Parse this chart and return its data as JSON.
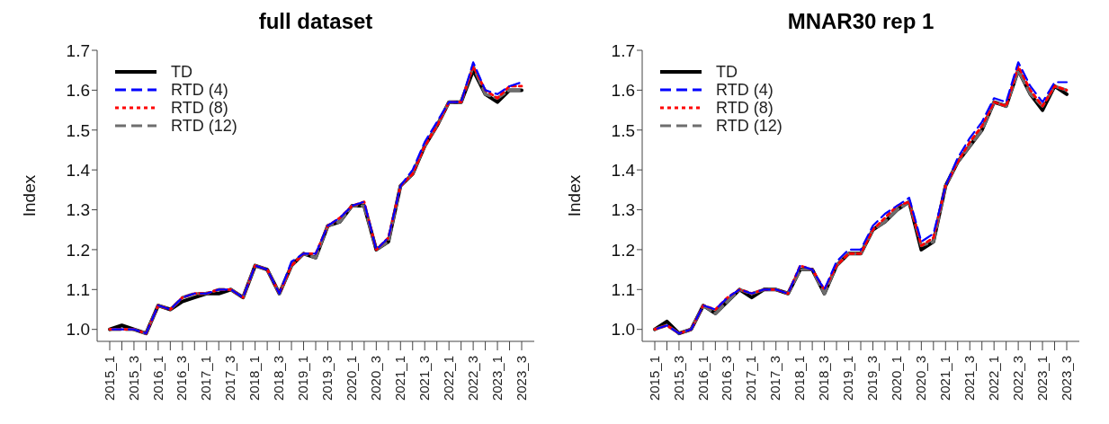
{
  "chart_data": [
    {
      "type": "line",
      "title": "full dataset",
      "ylabel": "Index",
      "categories": [
        "2015_1",
        null,
        "2015_3",
        null,
        "2016_1",
        null,
        "2016_3",
        null,
        "2017_1",
        null,
        "2017_3",
        null,
        "2018_1",
        null,
        "2018_3",
        null,
        "2019_1",
        null,
        "2019_3",
        null,
        "2020_1",
        null,
        "2020_3",
        null,
        "2021_1",
        null,
        "2021_3",
        null,
        "2022_1",
        null,
        "2022_3",
        null,
        "2023_1",
        null,
        "2023_3"
      ],
      "series": [
        {
          "name": "TD",
          "color": "#000000",
          "line_style": "solid",
          "values": [
            1.0,
            1.01,
            1.0,
            0.99,
            1.06,
            1.05,
            1.07,
            1.08,
            1.09,
            1.09,
            1.1,
            1.08,
            1.16,
            1.15,
            1.09,
            1.16,
            1.19,
            1.18,
            1.26,
            1.27,
            1.31,
            1.31,
            1.2,
            1.22,
            1.36,
            1.39,
            1.46,
            1.51,
            1.57,
            1.57,
            1.65,
            1.59,
            1.57,
            1.6,
            1.6
          ]
        },
        {
          "name": "RTD (4)",
          "color": "#0000ff",
          "line_style": "dashed",
          "values": [
            1.0,
            1.0,
            1.0,
            0.99,
            1.06,
            1.05,
            1.08,
            1.09,
            1.09,
            1.1,
            1.1,
            1.08,
            1.16,
            1.15,
            1.09,
            1.17,
            1.19,
            1.19,
            1.26,
            1.28,
            1.31,
            1.32,
            1.2,
            1.23,
            1.36,
            1.4,
            1.47,
            1.52,
            1.57,
            1.57,
            1.67,
            1.6,
            1.59,
            1.61,
            1.62
          ]
        },
        {
          "name": "RTD (8)",
          "color": "#ff0000",
          "line_style": "dotted",
          "values": [
            1.0,
            1.0,
            1.0,
            0.99,
            1.06,
            1.05,
            1.08,
            1.09,
            1.09,
            1.1,
            1.1,
            1.08,
            1.16,
            1.15,
            1.09,
            1.16,
            1.19,
            1.19,
            1.26,
            1.28,
            1.31,
            1.32,
            1.2,
            1.23,
            1.36,
            1.39,
            1.46,
            1.51,
            1.57,
            1.57,
            1.66,
            1.6,
            1.58,
            1.61,
            1.61
          ]
        },
        {
          "name": "RTD (12)",
          "color": "#6e6e6e",
          "line_style": "dashed",
          "values": [
            1.0,
            1.0,
            1.0,
            0.99,
            1.06,
            1.05,
            1.08,
            1.09,
            1.09,
            1.1,
            1.1,
            1.08,
            1.16,
            1.15,
            1.09,
            1.16,
            1.19,
            1.18,
            1.26,
            1.27,
            1.31,
            1.31,
            1.2,
            1.22,
            1.36,
            1.39,
            1.46,
            1.51,
            1.57,
            1.57,
            1.66,
            1.59,
            1.58,
            1.6,
            1.6
          ]
        }
      ],
      "ylim": [
        0.97,
        1.7
      ],
      "yticks": [
        {
          "value": 1.0,
          "label": "1.0"
        },
        {
          "value": 1.1,
          "label": "1.1"
        },
        {
          "value": 1.2,
          "label": "1.2"
        },
        {
          "value": 1.3,
          "label": "1.3"
        },
        {
          "value": 1.4,
          "label": "1.4"
        },
        {
          "value": 1.5,
          "label": "1.5"
        },
        {
          "value": 1.6,
          "label": "1.6"
        },
        {
          "value": 1.7,
          "label": "1.7"
        }
      ],
      "grid": false,
      "legend": "top left"
    },
    {
      "type": "line",
      "title": "MNAR30 rep 1",
      "ylabel": "Index",
      "categories": [
        "2015_1",
        null,
        "2015_3",
        null,
        "2016_1",
        null,
        "2016_3",
        null,
        "2017_1",
        null,
        "2017_3",
        null,
        "2018_1",
        null,
        "2018_3",
        null,
        "2019_1",
        null,
        "2019_3",
        null,
        "2020_1",
        null,
        "2020_3",
        null,
        "2021_1",
        null,
        "2021_3",
        null,
        "2022_1",
        null,
        "2022_3",
        null,
        "2023_1",
        null,
        "2023_3"
      ],
      "series": [
        {
          "name": "TD",
          "color": "#000000",
          "line_style": "solid",
          "values": [
            1.0,
            1.02,
            0.99,
            1.0,
            1.06,
            1.04,
            1.07,
            1.1,
            1.08,
            1.1,
            1.1,
            1.09,
            1.15,
            1.15,
            1.09,
            1.16,
            1.19,
            1.19,
            1.25,
            1.27,
            1.3,
            1.32,
            1.2,
            1.22,
            1.36,
            1.42,
            1.46,
            1.5,
            1.57,
            1.56,
            1.65,
            1.59,
            1.55,
            1.61,
            1.59
          ]
        },
        {
          "name": "RTD (4)",
          "color": "#0000ff",
          "line_style": "dashed",
          "values": [
            1.0,
            1.01,
            0.99,
            1.0,
            1.06,
            1.05,
            1.08,
            1.1,
            1.09,
            1.1,
            1.1,
            1.09,
            1.16,
            1.15,
            1.1,
            1.17,
            1.2,
            1.2,
            1.26,
            1.29,
            1.31,
            1.33,
            1.22,
            1.24,
            1.36,
            1.43,
            1.48,
            1.52,
            1.58,
            1.57,
            1.67,
            1.61,
            1.57,
            1.62,
            1.62
          ]
        },
        {
          "name": "RTD (8)",
          "color": "#ff0000",
          "line_style": "dotted",
          "values": [
            1.0,
            1.01,
            0.99,
            1.0,
            1.06,
            1.05,
            1.08,
            1.1,
            1.09,
            1.1,
            1.1,
            1.09,
            1.16,
            1.15,
            1.1,
            1.16,
            1.19,
            1.19,
            1.25,
            1.28,
            1.31,
            1.32,
            1.21,
            1.23,
            1.36,
            1.42,
            1.47,
            1.51,
            1.57,
            1.56,
            1.66,
            1.6,
            1.56,
            1.61,
            1.6
          ]
        },
        {
          "name": "RTD (12)",
          "color": "#6e6e6e",
          "line_style": "dashed",
          "values": [
            1.0,
            1.01,
            0.99,
            1.0,
            1.06,
            1.04,
            1.07,
            1.1,
            1.09,
            1.1,
            1.1,
            1.09,
            1.15,
            1.15,
            1.09,
            1.16,
            1.19,
            1.19,
            1.25,
            1.27,
            1.3,
            1.32,
            1.21,
            1.22,
            1.36,
            1.42,
            1.46,
            1.5,
            1.57,
            1.56,
            1.65,
            1.59,
            1.56,
            1.61,
            1.6
          ]
        }
      ],
      "ylim": [
        0.97,
        1.7
      ],
      "yticks": [
        {
          "value": 1.0,
          "label": "1.0"
        },
        {
          "value": 1.1,
          "label": "1.1"
        },
        {
          "value": 1.2,
          "label": "1.2"
        },
        {
          "value": 1.3,
          "label": "1.3"
        },
        {
          "value": 1.4,
          "label": "1.4"
        },
        {
          "value": 1.5,
          "label": "1.5"
        },
        {
          "value": 1.6,
          "label": "1.6"
        },
        {
          "value": 1.7,
          "label": "1.7"
        }
      ],
      "grid": false,
      "legend": "top left"
    }
  ]
}
